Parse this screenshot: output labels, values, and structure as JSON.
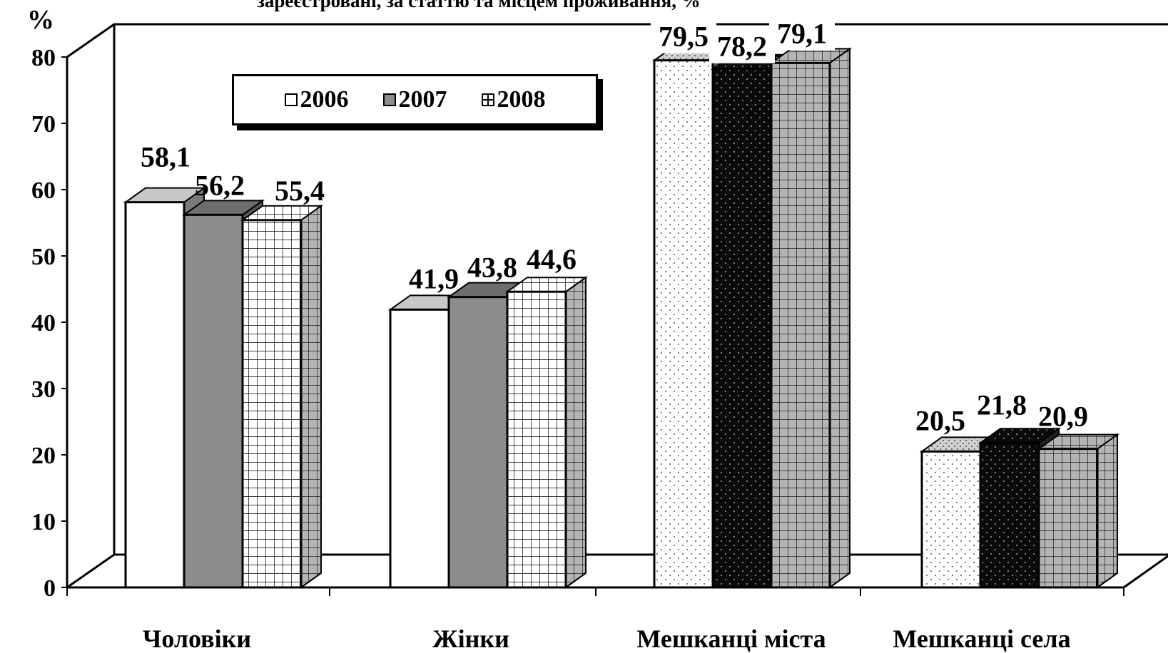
{
  "chart_data": {
    "type": "bar",
    "title": "зареєстровані, за статтю та місцем проживання, %",
    "ylabel": "%",
    "ylim": [
      0,
      80
    ],
    "yticks": [
      0,
      10,
      20,
      30,
      40,
      50,
      60,
      70,
      80
    ],
    "categories": [
      "Чоловіки",
      "Жінки",
      "Мешканці міста",
      "Мешканці села"
    ],
    "series": [
      {
        "name": "2006",
        "values": [
          58.1,
          41.9,
          79.5,
          20.5
        ],
        "labels": [
          "58,1",
          "41,9",
          "79,5",
          "20,5"
        ]
      },
      {
        "name": "2007",
        "values": [
          56.2,
          43.8,
          78.2,
          21.8
        ],
        "labels": [
          "56,2",
          "43,8",
          "78,2",
          "21,8"
        ]
      },
      {
        "name": "2008",
        "values": [
          55.4,
          44.6,
          79.1,
          20.9
        ],
        "labels": [
          "55,4",
          "44,6",
          "79,1",
          "20,9"
        ]
      }
    ],
    "legend": {
      "position": "top-left",
      "items": [
        "2006",
        "2007",
        "2008"
      ]
    },
    "style": "3d-bar",
    "grid": false
  }
}
